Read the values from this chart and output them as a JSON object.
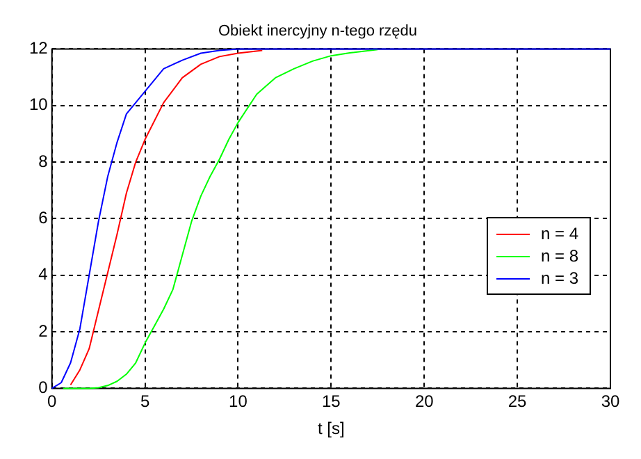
{
  "chart_data": {
    "type": "line",
    "title": "Obiekt inercyjny n-tego rzędu",
    "xlabel": "t [s]",
    "xlim": [
      0,
      30
    ],
    "xticks": [
      0,
      5,
      10,
      15,
      20,
      25,
      30
    ],
    "ylim": [
      0,
      12
    ],
    "yticks": [
      0,
      2,
      4,
      6,
      8,
      10,
      12
    ],
    "grid": true,
    "legend": "right",
    "line_style": "solid",
    "marker": "none",
    "series": [
      {
        "name": "n = 4",
        "color": "#ff0000",
        "x": [
          1,
          1.5,
          2,
          2.5,
          3,
          3.5,
          4,
          4.5,
          5,
          6,
          7,
          8,
          9,
          10,
          11.3
        ],
        "values": [
          0.12,
          0.65,
          1.4,
          2.75,
          4.1,
          5.45,
          6.9,
          8.0,
          8.8,
          10.1,
          10.98,
          11.46,
          11.73,
          11.85,
          11.95
        ]
      },
      {
        "name": "n = 8",
        "color": "#00ff00",
        "x": [
          0.6,
          2,
          2.5,
          3,
          3.5,
          4,
          4.5,
          5,
          5.5,
          6,
          6.5,
          7,
          7.5,
          8,
          8.5,
          9,
          9.5,
          10,
          11,
          12,
          13,
          14,
          15,
          16,
          17.5
        ],
        "values": [
          0,
          0,
          0.02,
          0.1,
          0.25,
          0.5,
          0.9,
          1.6,
          2.2,
          2.8,
          3.5,
          4.7,
          5.9,
          6.8,
          7.5,
          8.1,
          8.8,
          9.4,
          10.4,
          10.98,
          11.3,
          11.57,
          11.76,
          11.86,
          11.98
        ]
      },
      {
        "name": "n = 3",
        "color": "#0000ff",
        "x": [
          0,
          0.5,
          1,
          1.5,
          2,
          2.5,
          3,
          3.5,
          4,
          5,
          6,
          7,
          8,
          9,
          10,
          30
        ],
        "values": [
          0,
          0.2,
          0.9,
          2.1,
          4.0,
          5.9,
          7.5,
          8.7,
          9.7,
          10.5,
          11.3,
          11.6,
          11.85,
          11.95,
          12,
          12
        ]
      }
    ]
  }
}
